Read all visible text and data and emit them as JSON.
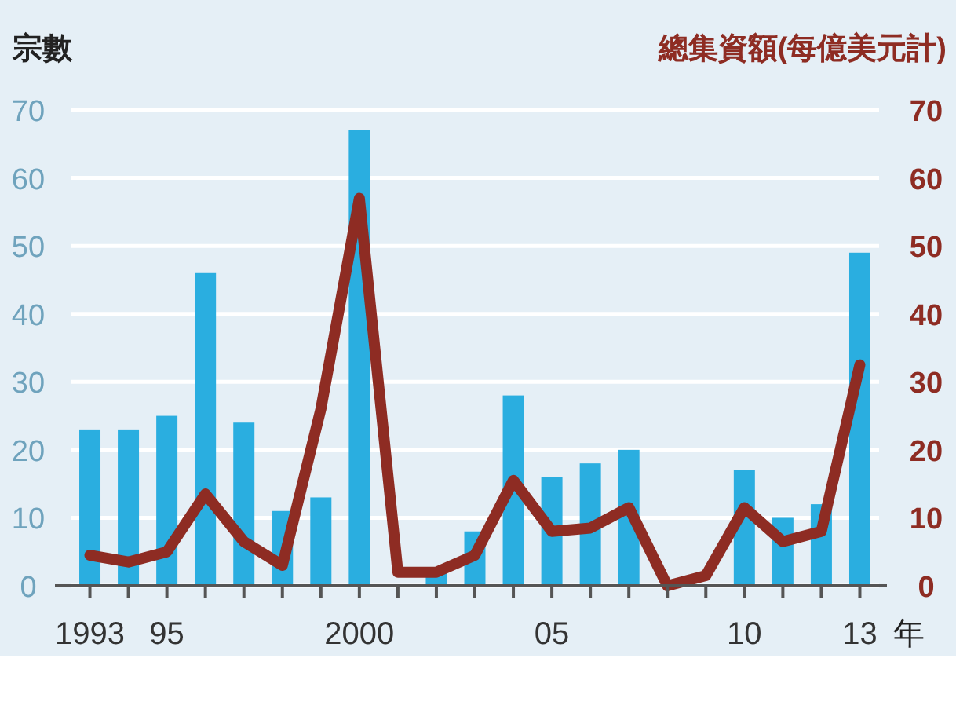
{
  "chart_data": {
    "type": "bar",
    "ylabel": "宗數",
    "y2label": "總集資額(每億美元計)",
    "xlabel": "年",
    "categories": [
      "1993",
      null,
      "95",
      null,
      null,
      null,
      null,
      "2000",
      null,
      null,
      null,
      null,
      "05",
      null,
      null,
      null,
      null,
      "10",
      null,
      null,
      "13"
    ],
    "ylim": [
      0,
      70
    ],
    "yticks": [
      0,
      10,
      20,
      30,
      40,
      50,
      60,
      70
    ],
    "y2lim": [
      0,
      70
    ],
    "y2ticks": [
      0,
      10,
      20,
      30,
      40,
      50,
      60,
      70
    ],
    "grid": "y",
    "series": [
      {
        "color": "#2aaee0",
        "values": [
          23,
          23,
          25,
          46,
          24,
          11,
          13,
          67,
          null,
          2,
          8,
          28,
          16,
          18,
          20,
          0,
          null,
          17,
          10,
          12,
          49
        ]
      },
      {
        "type": "line",
        "axis": "y2",
        "color": "#8e2c23",
        "values": [
          4.5,
          3.5,
          5,
          13.5,
          6.5,
          3,
          26,
          57,
          2,
          2,
          4.5,
          15.5,
          8,
          8.5,
          11.5,
          0,
          1.5,
          11.5,
          6.5,
          8,
          32.5
        ]
      }
    ]
  }
}
